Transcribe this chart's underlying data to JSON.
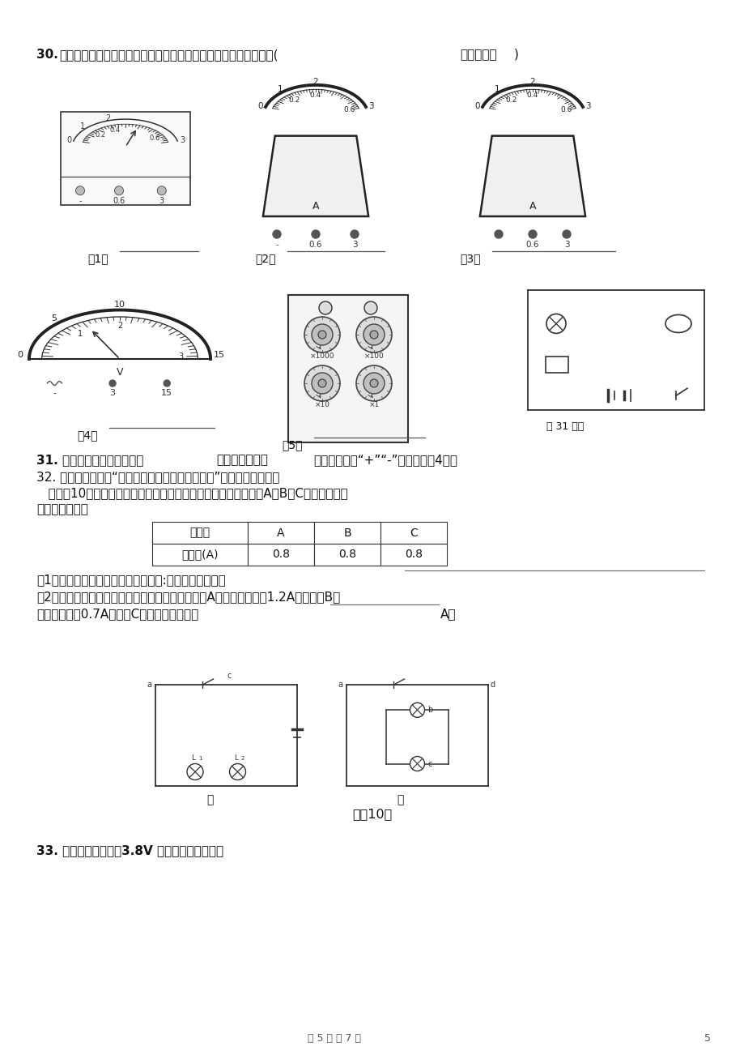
{
  "page_bg": "#ffffff",
  "q30_prefix": "30. ",
  "q30_main": "你能读取它们的求数吗？请把它们的示数和单位填写在下方横线上(",
  "q30_bold": "注意写单位",
  "q30_end": ")",
  "q31_pre": "31. 如图所示的电路图中填入",
  "q31_bold": "电流表或电压表",
  "q31_end": "并标出相应的“+”“-”接线柱。（4分）",
  "q32_line1": "32. 小红同学在探究“串联并联电路中的电流的规律”时做了如下实验：",
  "q32_line2": "   按图（10）甲所示的电路连接好后，把电流表先后接在电路中的A、B、C处，行到了如",
  "q32_line3": "下的记录数据：",
  "table_headers": [
    "测量处",
    "A",
    "B",
    "C"
  ],
  "table_row1": [
    "电流值(A)",
    "0.8",
    "0.8",
    "0.8"
  ],
  "q32_c1": "（1）比较测得的数据可得出的结论是:串联电路中的各处",
  "q32_c2": "（2）她在测并联电路的电流时，如图乙所示，若在A处测得的电流为1.2A，然后在B处",
  "q32_c3": "测得的电流为0.7A，则在C处测得的电流值为",
  "q32_c3e": "A。",
  "q33_text": "33. 在测定额定电压为3.8V 小灯泡电阻的实验中",
  "fig10": "图（10）",
  "jia": "甲",
  "yi": "乙",
  "fig31": "第 31 题图",
  "footer": "第 5 页 八 7 页",
  "footer_num": "5",
  "labels123": [
    "（1）",
    "（2）",
    "（3）"
  ],
  "labels45": [
    "（4）",
    "（5）"
  ]
}
